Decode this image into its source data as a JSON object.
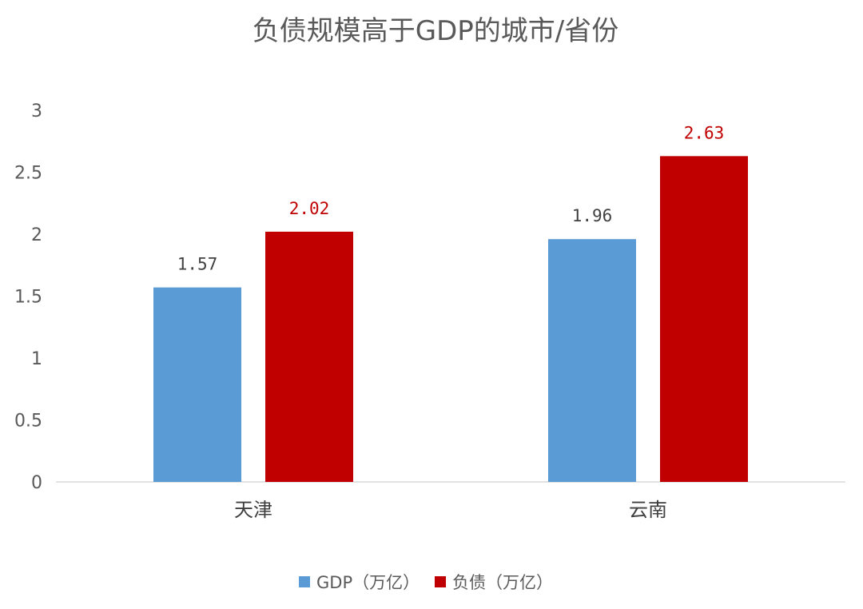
{
  "chart_data": {
    "type": "bar",
    "title": "负债规模高于GDP的城市/省份",
    "categories": [
      "天津",
      "云南"
    ],
    "series": [
      {
        "name": "GDP（万亿）",
        "values": [
          1.57,
          1.96
        ],
        "color": "#5B9BD5",
        "label_color": "#404040"
      },
      {
        "name": "负债（万亿）",
        "values": [
          2.02,
          2.63
        ],
        "color": "#C00000",
        "label_color": "#C00000"
      }
    ],
    "data_labels": [
      [
        "1.57",
        "1.96"
      ],
      [
        "2.02",
        "2.63"
      ]
    ],
    "ylim": [
      0,
      3
    ],
    "yticks": [
      "0",
      "0.5",
      "1",
      "1.5",
      "2",
      "2.5",
      "3"
    ],
    "grid": false,
    "legend_position": "bottom"
  }
}
